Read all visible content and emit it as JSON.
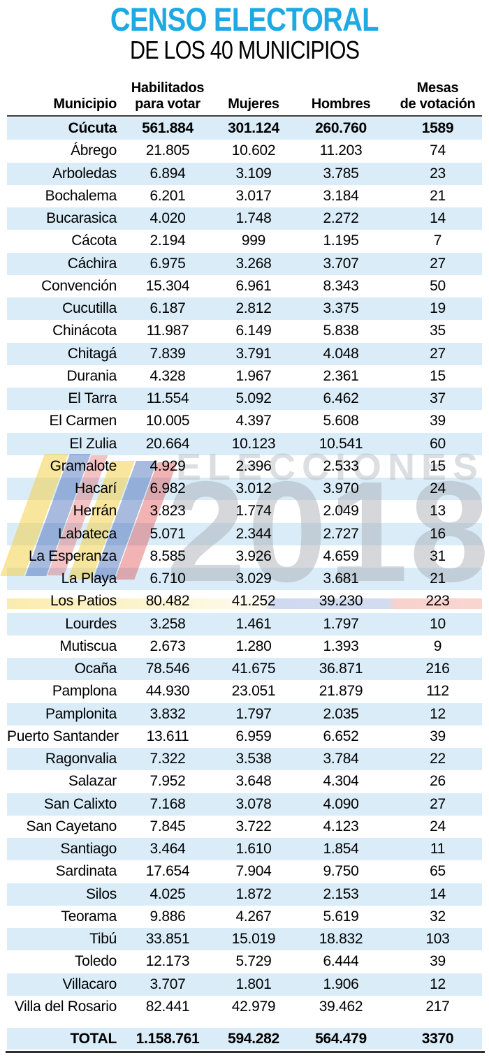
{
  "title": {
    "main": "CENSO ELECTORAL",
    "subtitle": "DE LOS 40 MUNICIPIOS"
  },
  "header": {
    "columns": [
      {
        "key": "municipio",
        "lines": [
          "Municipio"
        ]
      },
      {
        "key": "habilitados",
        "lines": [
          "Habilitados",
          "para votar"
        ]
      },
      {
        "key": "mujeres",
        "lines": [
          "Mujeres"
        ]
      },
      {
        "key": "hombres",
        "lines": [
          "Hombres"
        ]
      },
      {
        "key": "mesas",
        "lines": [
          "Mesas",
          "de votación"
        ]
      }
    ]
  },
  "watermark": {
    "word": "ELECCIONES",
    "year": "2018"
  },
  "colors": {
    "title_cyan": "#1FA9E2",
    "row_blue": "#D9ECF8",
    "rule_dark": "#3b3b3b",
    "flag_yellow": "#F2D24A",
    "flag_blue": "#3F66B4",
    "flag_red": "#DC4040"
  },
  "chart_data": {
    "type": "table",
    "title": "CENSO ELECTORAL",
    "subtitle": "DE LOS 40 MUNICIPIOS",
    "columns": [
      "Municipio",
      "Habilitados para votar",
      "Mujeres",
      "Hombres",
      "Mesas de votación"
    ],
    "highlighted_row": "Cúcuta",
    "rows": [
      [
        "Cúcuta",
        "561.884",
        "301.124",
        "260.760",
        "1589"
      ],
      [
        "Ábrego",
        "21.805",
        "10.602",
        "11.203",
        "74"
      ],
      [
        "Arboledas",
        "6.894",
        "3.109",
        "3.785",
        "23"
      ],
      [
        "Bochalema",
        "6.201",
        "3.017",
        "3.184",
        "21"
      ],
      [
        "Bucarasica",
        "4.020",
        "1.748",
        "2.272",
        "14"
      ],
      [
        "Cácota",
        "2.194",
        "999",
        "1.195",
        "7"
      ],
      [
        "Cáchira",
        "6.975",
        "3.268",
        "3.707",
        "27"
      ],
      [
        "Convención",
        "15.304",
        "6.961",
        "8.343",
        "50"
      ],
      [
        "Cucutilla",
        "6.187",
        "2.812",
        "3.375",
        "19"
      ],
      [
        "Chinácota",
        "11.987",
        "6.149",
        "5.838",
        "35"
      ],
      [
        "Chitagá",
        "7.839",
        "3.791",
        "4.048",
        "27"
      ],
      [
        "Durania",
        "4.328",
        "1.967",
        "2.361",
        "15"
      ],
      [
        "El Tarra",
        "11.554",
        "5.092",
        "6.462",
        "37"
      ],
      [
        "El Carmen",
        "10.005",
        "4.397",
        "5.608",
        "39"
      ],
      [
        "El Zulia",
        "20.664",
        "10.123",
        "10.541",
        "60"
      ],
      [
        "Gramalote",
        "4.929",
        "2.396",
        "2.533",
        "15"
      ],
      [
        "Hacarí",
        "6.982",
        "3.012",
        "3.970",
        "24"
      ],
      [
        "Herrán",
        "3.823",
        "1.774",
        "2.049",
        "13"
      ],
      [
        "Labateca",
        "5.071",
        "2.344",
        "2.727",
        "16"
      ],
      [
        "La Esperanza",
        "8.585",
        "3.926",
        "4.659",
        "31"
      ],
      [
        "La Playa",
        "6.710",
        "3.029",
        "3.681",
        "21"
      ],
      [
        "Los Patios",
        "80.482",
        "41.252",
        "39.230",
        "223"
      ],
      [
        "Lourdes",
        "3.258",
        "1.461",
        "1.797",
        "10"
      ],
      [
        "Mutiscua",
        "2.673",
        "1.280",
        "1.393",
        "9"
      ],
      [
        "Ocaña",
        "78.546",
        "41.675",
        "36.871",
        "216"
      ],
      [
        "Pamplona",
        "44.930",
        "23.051",
        "21.879",
        "112"
      ],
      [
        "Pamplonita",
        "3.832",
        "1.797",
        "2.035",
        "12"
      ],
      [
        "Puerto Santander",
        "13.611",
        "6.959",
        "6.652",
        "39"
      ],
      [
        "Ragonvalia",
        "7.322",
        "3.538",
        "3.784",
        "22"
      ],
      [
        "Salazar",
        "7.952",
        "3.648",
        "4.304",
        "26"
      ],
      [
        "San Calixto",
        "7.168",
        "3.078",
        "4.090",
        "27"
      ],
      [
        "San Cayetano",
        "7.845",
        "3.722",
        "4.123",
        "24"
      ],
      [
        "Santiago",
        "3.464",
        "1.610",
        "1.854",
        "11"
      ],
      [
        "Sardinata",
        "17.654",
        "7.904",
        "9.750",
        "65"
      ],
      [
        "Silos",
        "4.025",
        "1.872",
        "2.153",
        "14"
      ],
      [
        "Teorama",
        "9.886",
        "4.267",
        "5.619",
        "32"
      ],
      [
        "Tibú",
        "33.851",
        "15.019",
        "18.832",
        "103"
      ],
      [
        "Toledo",
        "12.173",
        "5.729",
        "6.444",
        "39"
      ],
      [
        "Villacaro",
        "3.707",
        "1.801",
        "1.906",
        "12"
      ],
      [
        "Villa del Rosario",
        "82.441",
        "42.979",
        "39.462",
        "217"
      ]
    ],
    "total": [
      "TOTAL",
      "1.158.761",
      "594.282",
      "564.479",
      "3370"
    ]
  }
}
